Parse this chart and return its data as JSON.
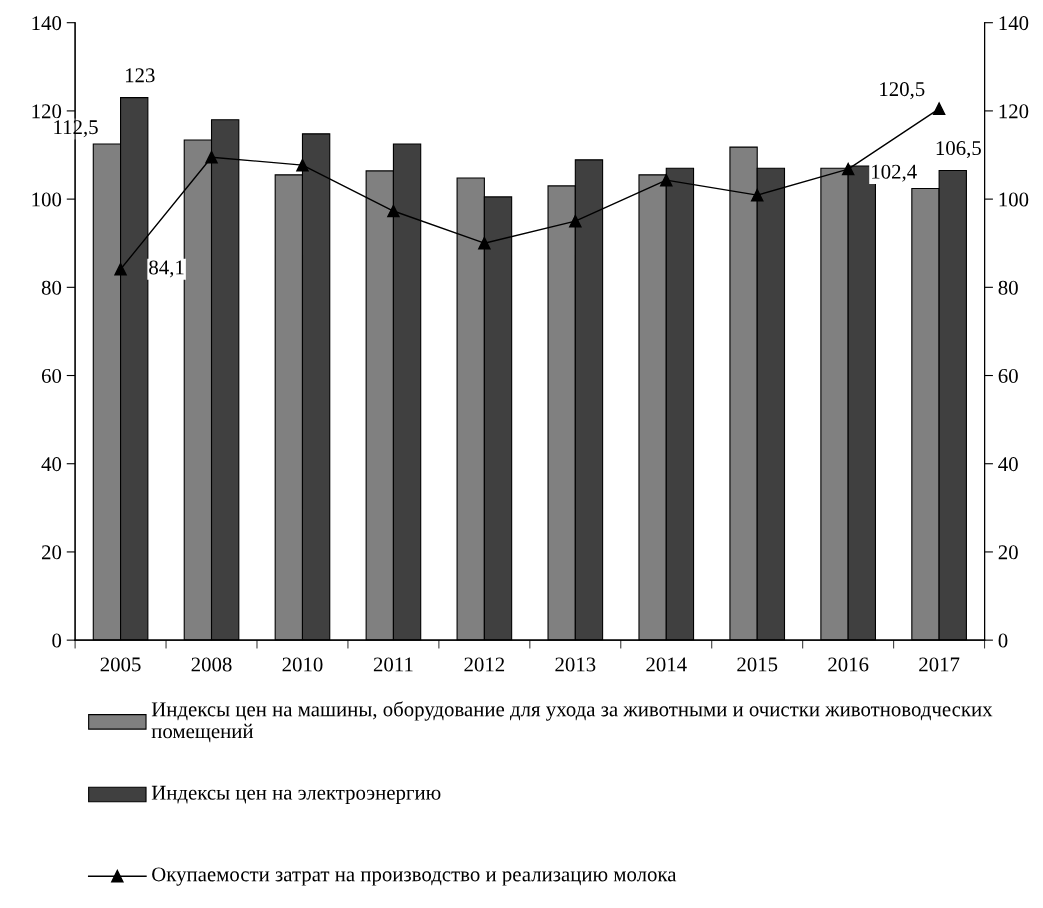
{
  "chart_data": {
    "type": "bar",
    "categories": [
      "2005",
      "2008",
      "2010",
      "2011",
      "2012",
      "2013",
      "2014",
      "2015",
      "2016",
      "2017"
    ],
    "series": [
      {
        "name": "Индексы цен на машины, оборудование для ухода за животными и очистки животноводческих помещений",
        "color": "#808080",
        "values": [
          112.5,
          113.4,
          105.5,
          106.4,
          104.8,
          103,
          105.5,
          111.8,
          107,
          102.4
        ],
        "value_labels": [
          "112,5",
          null,
          null,
          null,
          null,
          null,
          null,
          null,
          null,
          "102,4"
        ]
      },
      {
        "name": "Индексы цен на электроэнергию",
        "color": "#404040",
        "values": [
          123,
          118,
          114.8,
          112.5,
          100.5,
          108.9,
          107,
          107,
          107.5,
          106.5
        ],
        "value_labels": [
          "123",
          null,
          null,
          null,
          null,
          null,
          null,
          null,
          null,
          "106,5"
        ]
      },
      {
        "name": "Окупаемости затрат на производство и реализацию молока",
        "type": "line",
        "axis": "y2",
        "color": "#000000",
        "marker": "triangle",
        "line_style": "solid",
        "values": [
          84.1,
          109.5,
          107.7,
          97.3,
          90,
          95,
          104.3,
          100.9,
          106.8,
          120.5
        ],
        "value_labels": [
          "84,1",
          null,
          null,
          null,
          null,
          null,
          null,
          null,
          null,
          "120,5"
        ]
      }
    ],
    "ylim": [
      0,
      140
    ],
    "yticks": [
      0,
      20,
      40,
      60,
      80,
      100,
      120,
      140
    ],
    "y2lim": [
      0,
      140
    ],
    "y2ticks": [
      0,
      20,
      40,
      60,
      80,
      100,
      120,
      140
    ],
    "grid": false,
    "legend": "bottom"
  }
}
